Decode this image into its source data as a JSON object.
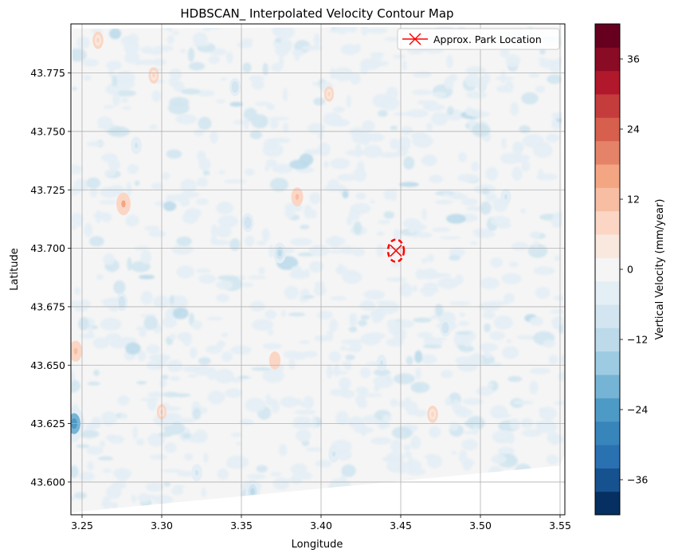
{
  "chart_data": {
    "type": "contour",
    "title": "HDBSCAN_ Interpolated Velocity Contour Map",
    "xlabel": "Longitude",
    "ylabel": "Latitude",
    "xlim": [
      3.243,
      3.553
    ],
    "ylim": [
      43.586,
      43.796
    ],
    "xticks": [
      3.25,
      3.3,
      3.35,
      3.4,
      3.45,
      3.5,
      3.55
    ],
    "xtick_labels": [
      "3.25",
      "3.30",
      "3.35",
      "3.40",
      "3.45",
      "3.50",
      "3.55"
    ],
    "yticks": [
      43.6,
      43.625,
      43.65,
      43.675,
      43.7,
      43.725,
      43.75,
      43.775
    ],
    "ytick_labels": [
      "43.600",
      "43.625",
      "43.650",
      "43.675",
      "43.700",
      "43.725",
      "43.750",
      "43.775"
    ],
    "grid": true,
    "legend": {
      "placement": "top-right",
      "entries": [
        {
          "label": "Approx. Park Location",
          "marker": "x",
          "color": "#ff0000"
        }
      ]
    },
    "marker": {
      "name": "Approx. Park Location",
      "x": 3.447,
      "y": 43.699
    },
    "marker_circle": {
      "center_x": 3.447,
      "center_y": 43.699,
      "style": "dashed",
      "color": "#ff0000"
    },
    "data_hull": [
      [
        3.244,
        43.794
      ],
      [
        3.551,
        43.795
      ],
      [
        3.551,
        43.749
      ],
      [
        3.553,
        43.612
      ],
      [
        3.55,
        43.607
      ],
      [
        3.243,
        43.587
      ]
    ],
    "colorbar": {
      "label": "Vertical Velocity (mm/year)",
      "vmin": -42,
      "vmax": 42,
      "step": 4,
      "ticks": [
        -36,
        -24,
        -12,
        0,
        12,
        24,
        36
      ],
      "tick_labels": [
        "−36",
        "−24",
        "−12",
        "0",
        "12",
        "24",
        "36"
      ],
      "colors": [
        "#053061",
        "#175290",
        "#2a71b2",
        "#3885bc",
        "#4e9ac6",
        "#76b4d5",
        "#9dcbe1",
        "#bcdaea",
        "#d2e5f0",
        "#e4eef5",
        "#f5f5f5",
        "#f8e8de",
        "#fbd6c5",
        "#f7bea4",
        "#f4a582",
        "#e58368",
        "#d6604d",
        "#c43c3c",
        "#b2182b",
        "#8a0b25",
        "#67001f"
      ]
    },
    "background_level_color": "#f5f5f5",
    "anomalies": [
      {
        "x": 3.246,
        "y": 43.656,
        "value": 12
      },
      {
        "x": 3.276,
        "y": 43.719,
        "value": 14
      },
      {
        "x": 3.385,
        "y": 43.722,
        "value": 10
      },
      {
        "x": 3.371,
        "y": 43.652,
        "value": 9
      },
      {
        "x": 3.26,
        "y": 43.789,
        "value": 8
      },
      {
        "x": 3.295,
        "y": 43.774,
        "value": 7
      },
      {
        "x": 3.405,
        "y": 43.766,
        "value": 6
      },
      {
        "x": 3.47,
        "y": 43.629,
        "value": 8
      },
      {
        "x": 3.3,
        "y": 43.63,
        "value": 6
      },
      {
        "x": 3.245,
        "y": 43.625,
        "value": -26
      },
      {
        "x": 3.374,
        "y": 43.698,
        "value": -12
      },
      {
        "x": 3.354,
        "y": 43.711,
        "value": -10
      },
      {
        "x": 3.284,
        "y": 43.744,
        "value": -8
      },
      {
        "x": 3.346,
        "y": 43.769,
        "value": -9
      },
      {
        "x": 3.478,
        "y": 43.666,
        "value": -9
      },
      {
        "x": 3.438,
        "y": 43.651,
        "value": -7
      },
      {
        "x": 3.275,
        "y": 43.677,
        "value": -9
      },
      {
        "x": 3.501,
        "y": 43.77,
        "value": -6
      },
      {
        "x": 3.516,
        "y": 43.722,
        "value": -7
      },
      {
        "x": 3.408,
        "y": 43.612,
        "value": -8
      },
      {
        "x": 3.322,
        "y": 43.604,
        "value": -8
      },
      {
        "x": 3.357,
        "y": 43.596,
        "value": -14
      }
    ]
  }
}
